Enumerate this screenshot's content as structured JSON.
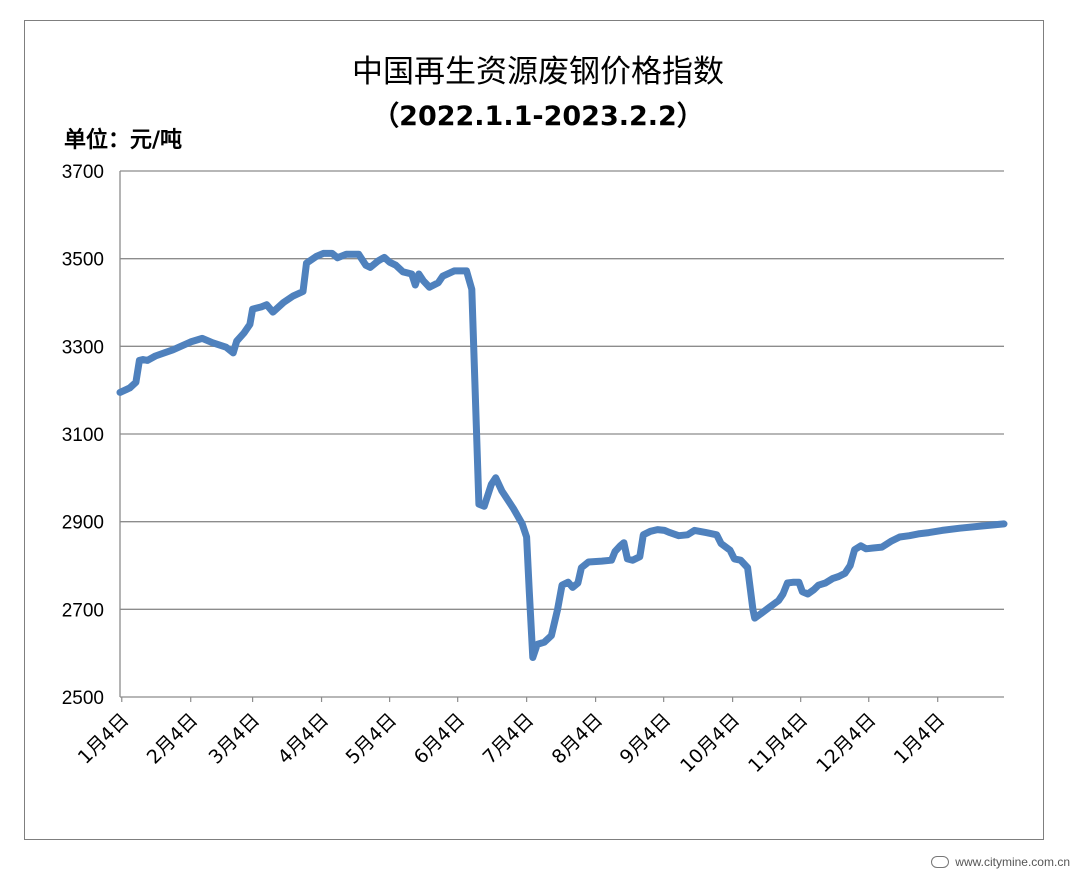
{
  "chart_data": {
    "type": "line",
    "title": "中国再生资源废钢价格指数",
    "subtitle": "（2022.1.1-2023.2.2）",
    "ylabel": "单位：元/吨",
    "xlabel": "",
    "ylim": [
      2500,
      3700
    ],
    "yticks": [
      2500,
      2700,
      2900,
      3100,
      3300,
      3500,
      3700
    ],
    "grid": true,
    "legend": "none",
    "line_color": "#4f81bd",
    "x_tick_labels": [
      {
        "label": "1月4日",
        "pos": 0.002
      },
      {
        "label": "2月4日",
        "pos": 0.08
      },
      {
        "label": "3月4日",
        "pos": 0.15
      },
      {
        "label": "4月4日",
        "pos": 0.228
      },
      {
        "label": "5月4日",
        "pos": 0.305
      },
      {
        "label": "6月4日",
        "pos": 0.382
      },
      {
        "label": "7月4日",
        "pos": 0.46
      },
      {
        "label": "8月4日",
        "pos": 0.538
      },
      {
        "label": "9月4日",
        "pos": 0.615
      },
      {
        "label": "10月4日",
        "pos": 0.693
      },
      {
        "label": "11月4日",
        "pos": 0.77
      },
      {
        "label": "12月4日",
        "pos": 0.847
      },
      {
        "label": "1月4日",
        "pos": 0.925
      }
    ],
    "series": [
      {
        "points": [
          [
            0.0,
            3195
          ],
          [
            0.011,
            3205
          ],
          [
            0.018,
            3218
          ],
          [
            0.022,
            3268
          ],
          [
            0.026,
            3270
          ],
          [
            0.031,
            3268
          ],
          [
            0.04,
            3278
          ],
          [
            0.06,
            3292
          ],
          [
            0.08,
            3310
          ],
          [
            0.093,
            3318
          ],
          [
            0.105,
            3308
          ],
          [
            0.12,
            3298
          ],
          [
            0.128,
            3285
          ],
          [
            0.132,
            3312
          ],
          [
            0.14,
            3330
          ],
          [
            0.147,
            3350
          ],
          [
            0.15,
            3385
          ],
          [
            0.16,
            3390
          ],
          [
            0.166,
            3395
          ],
          [
            0.173,
            3378
          ],
          [
            0.185,
            3400
          ],
          [
            0.196,
            3415
          ],
          [
            0.207,
            3425
          ],
          [
            0.211,
            3490
          ],
          [
            0.222,
            3505
          ],
          [
            0.23,
            3512
          ],
          [
            0.24,
            3512
          ],
          [
            0.246,
            3502
          ],
          [
            0.256,
            3510
          ],
          [
            0.27,
            3510
          ],
          [
            0.278,
            3485
          ],
          [
            0.283,
            3480
          ],
          [
            0.292,
            3495
          ],
          [
            0.299,
            3503
          ],
          [
            0.305,
            3492
          ],
          [
            0.312,
            3485
          ],
          [
            0.32,
            3470
          ],
          [
            0.33,
            3465
          ],
          [
            0.334,
            3440
          ],
          [
            0.338,
            3465
          ],
          [
            0.343,
            3450
          ],
          [
            0.35,
            3435
          ],
          [
            0.36,
            3445
          ],
          [
            0.365,
            3460
          ],
          [
            0.378,
            3472
          ],
          [
            0.392,
            3472
          ],
          [
            0.398,
            3430
          ],
          [
            0.403,
            3120
          ],
          [
            0.406,
            2940
          ],
          [
            0.412,
            2935
          ],
          [
            0.42,
            2985
          ],
          [
            0.425,
            3000
          ],
          [
            0.432,
            2970
          ],
          [
            0.445,
            2930
          ],
          [
            0.455,
            2895
          ],
          [
            0.46,
            2865
          ],
          [
            0.463,
            2740
          ],
          [
            0.467,
            2590
          ],
          [
            0.472,
            2620
          ],
          [
            0.48,
            2625
          ],
          [
            0.488,
            2640
          ],
          [
            0.495,
            2700
          ],
          [
            0.5,
            2755
          ],
          [
            0.507,
            2762
          ],
          [
            0.512,
            2750
          ],
          [
            0.518,
            2760
          ],
          [
            0.522,
            2795
          ],
          [
            0.53,
            2808
          ],
          [
            0.545,
            2810
          ],
          [
            0.556,
            2812
          ],
          [
            0.56,
            2832
          ],
          [
            0.566,
            2845
          ],
          [
            0.57,
            2852
          ],
          [
            0.574,
            2815
          ],
          [
            0.58,
            2812
          ],
          [
            0.588,
            2820
          ],
          [
            0.592,
            2870
          ],
          [
            0.6,
            2878
          ],
          [
            0.608,
            2882
          ],
          [
            0.616,
            2880
          ],
          [
            0.622,
            2875
          ],
          [
            0.632,
            2868
          ],
          [
            0.642,
            2870
          ],
          [
            0.65,
            2880
          ],
          [
            0.663,
            2875
          ],
          [
            0.675,
            2870
          ],
          [
            0.68,
            2850
          ],
          [
            0.69,
            2835
          ],
          [
            0.695,
            2815
          ],
          [
            0.702,
            2812
          ],
          [
            0.71,
            2795
          ],
          [
            0.716,
            2700
          ],
          [
            0.718,
            2680
          ],
          [
            0.725,
            2690
          ],
          [
            0.735,
            2705
          ],
          [
            0.745,
            2720
          ],
          [
            0.75,
            2735
          ],
          [
            0.755,
            2760
          ],
          [
            0.762,
            2762
          ],
          [
            0.768,
            2762
          ],
          [
            0.772,
            2740
          ],
          [
            0.778,
            2735
          ],
          [
            0.785,
            2745
          ],
          [
            0.79,
            2755
          ],
          [
            0.798,
            2760
          ],
          [
            0.806,
            2770
          ],
          [
            0.813,
            2775
          ],
          [
            0.82,
            2782
          ],
          [
            0.826,
            2800
          ],
          [
            0.831,
            2836
          ],
          [
            0.838,
            2845
          ],
          [
            0.844,
            2838
          ],
          [
            0.852,
            2840
          ],
          [
            0.862,
            2842
          ],
          [
            0.872,
            2855
          ],
          [
            0.882,
            2865
          ],
          [
            0.893,
            2868
          ],
          [
            0.903,
            2872
          ],
          [
            0.915,
            2875
          ],
          [
            0.93,
            2880
          ],
          [
            0.95,
            2885
          ],
          [
            0.975,
            2890
          ],
          [
            1.0,
            2895
          ]
        ]
      }
    ]
  },
  "watermark": {
    "text": "www.citymine.com.cn"
  }
}
